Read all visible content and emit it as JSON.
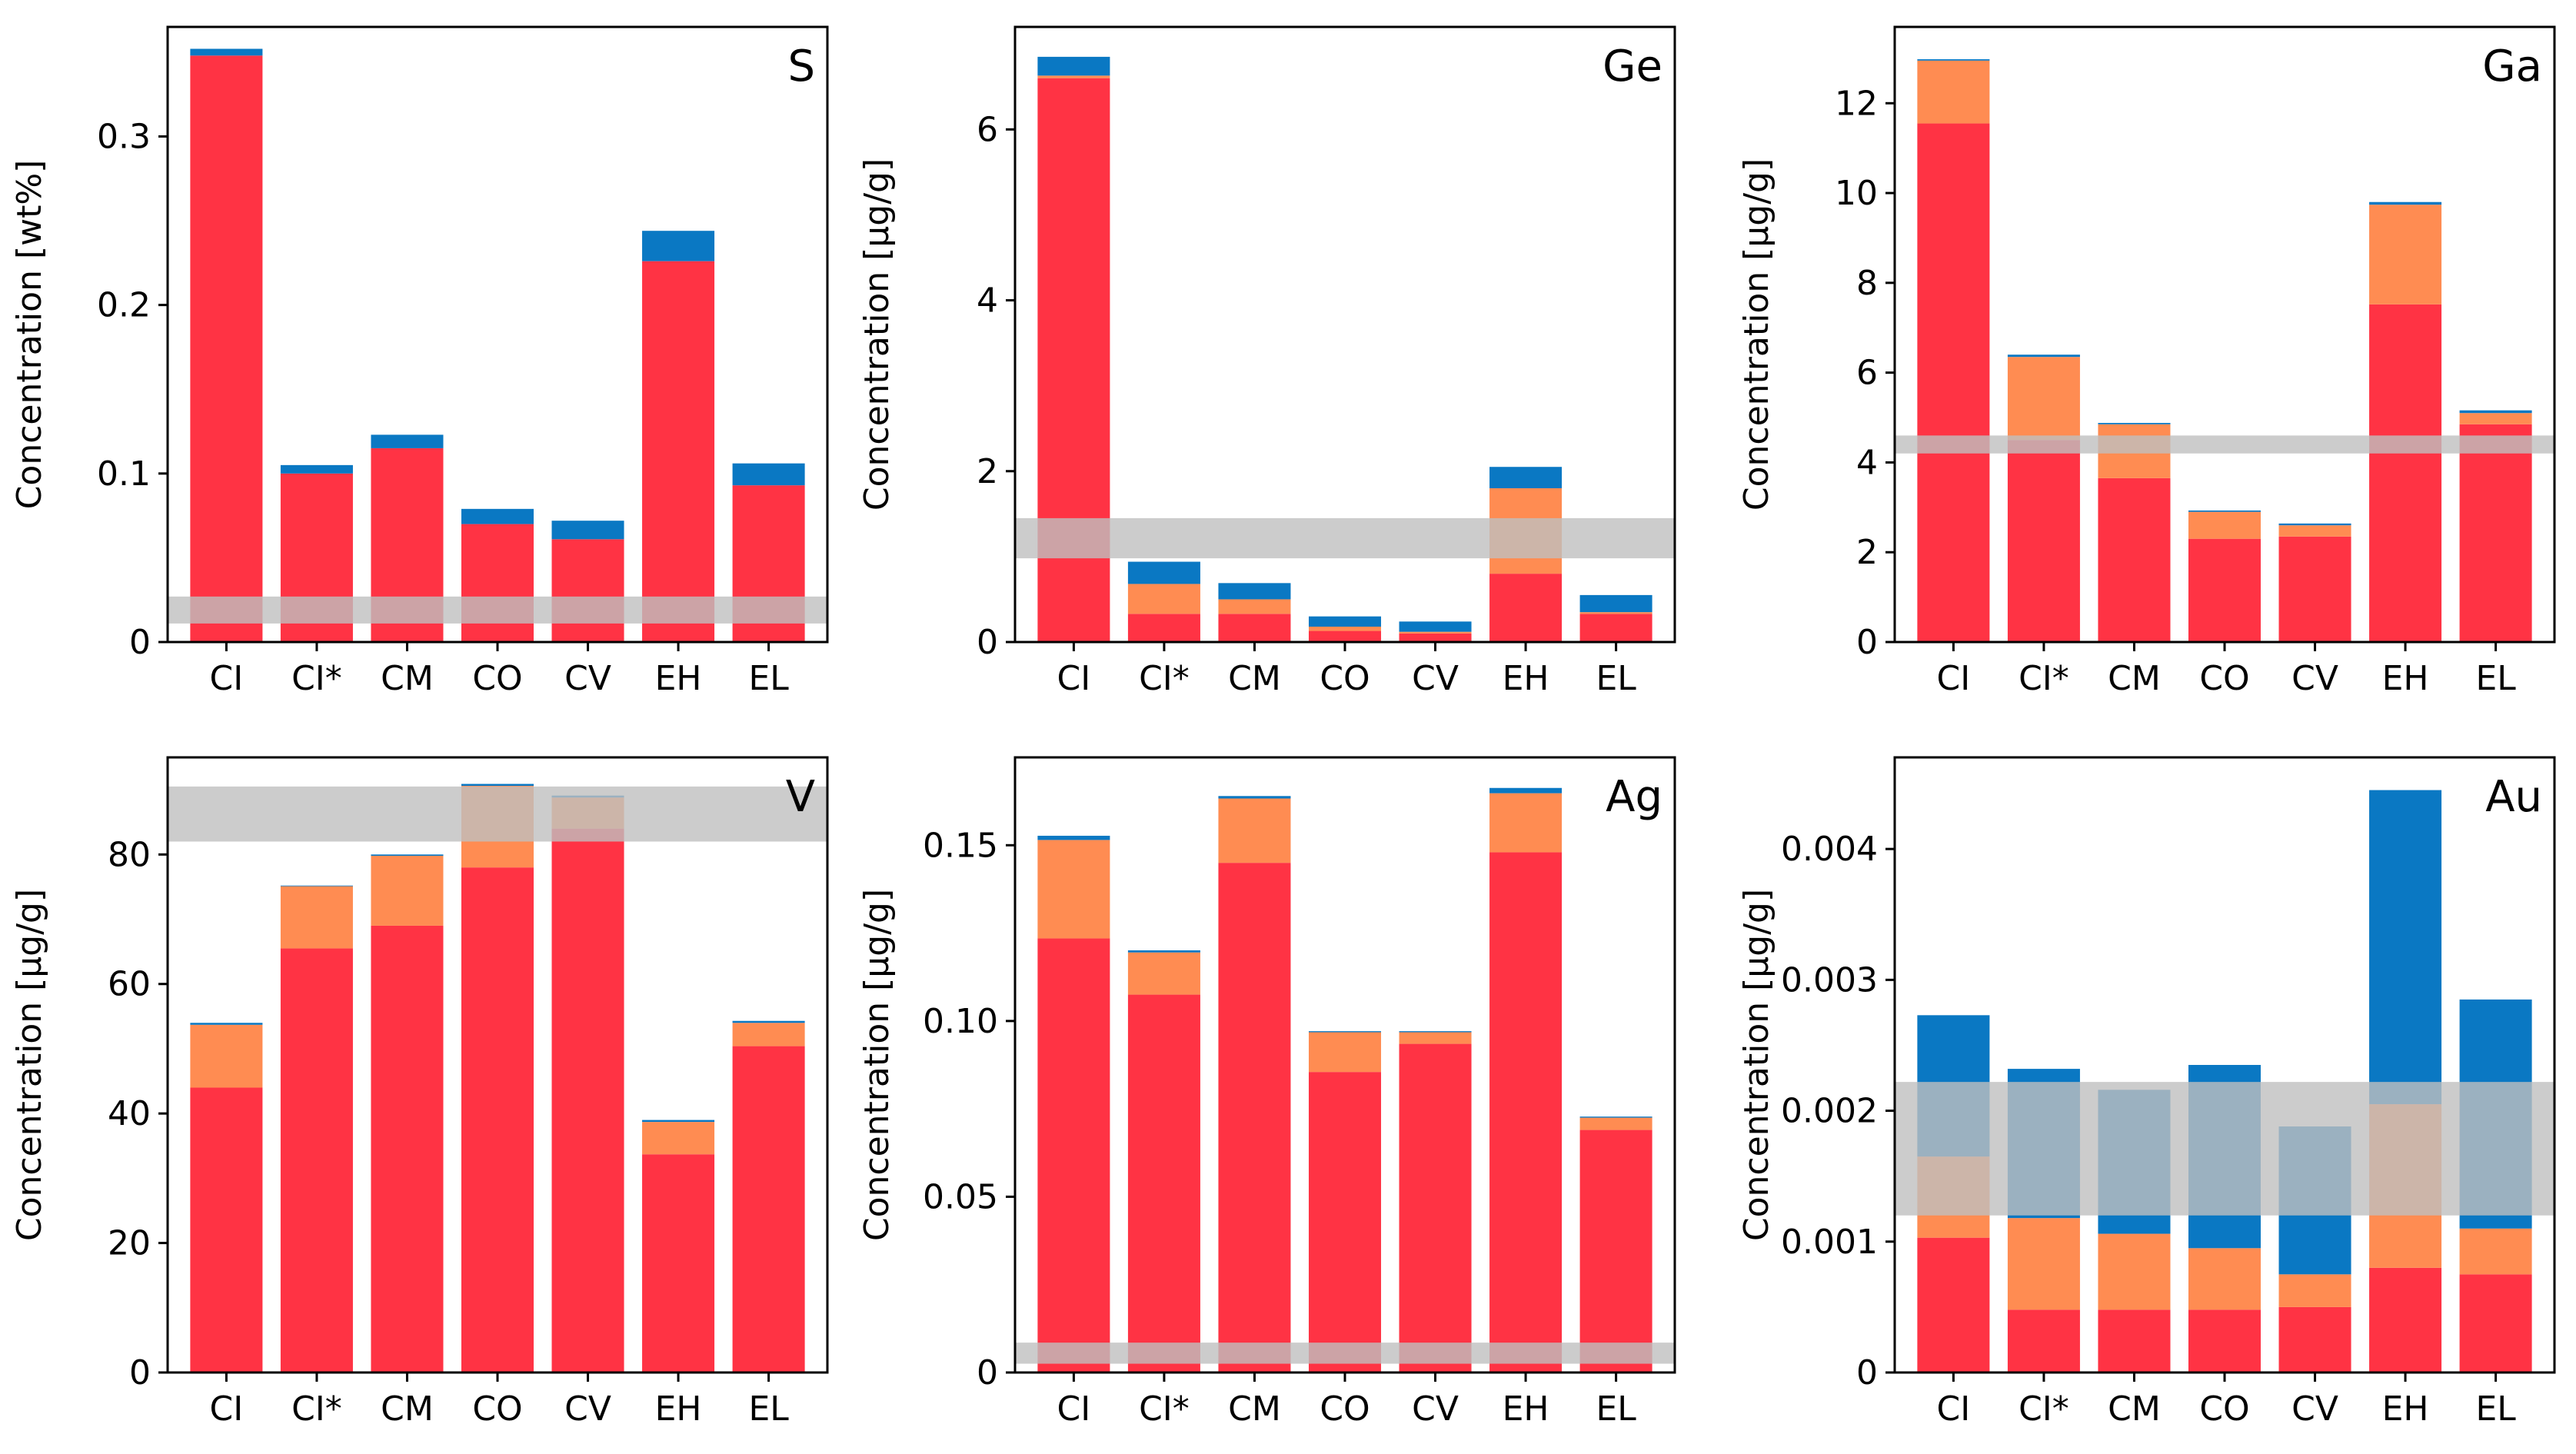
{
  "colors": {
    "bottom": "#ff3344",
    "middle": "#ff8c52",
    "top": "#0a78c3",
    "band": "#bfbfbf",
    "axis": "#000000"
  },
  "chart_data": [
    {
      "type": "bar",
      "title": "S",
      "ylabel": "Concentration [wt%]",
      "categories": [
        "CI",
        "CI*",
        "CM",
        "CO",
        "CV",
        "EH",
        "EL"
      ],
      "ylim": [
        0,
        0.365
      ],
      "yticks": [
        0,
        0.1,
        0.2,
        0.3
      ],
      "ytick_labels": [
        "0",
        "0.1",
        "0.2",
        "0.3"
      ],
      "series": [
        {
          "name": "bottom",
          "values": [
            0.348,
            0.1,
            0.115,
            0.07,
            0.061,
            0.226,
            0.093
          ]
        },
        {
          "name": "middle",
          "values": [
            0,
            0,
            0,
            0,
            0,
            0,
            0
          ]
        },
        {
          "name": "top",
          "values": [
            0.004,
            0.005,
            0.008,
            0.009,
            0.011,
            0.018,
            0.013
          ]
        }
      ],
      "band": [
        0.011,
        0.027
      ]
    },
    {
      "type": "bar",
      "title": "Ge",
      "ylabel": "Concentration [µg/g]",
      "categories": [
        "CI",
        "CI*",
        "CM",
        "CO",
        "CV",
        "EH",
        "EL"
      ],
      "ylim": [
        0,
        7.2
      ],
      "yticks": [
        0,
        2,
        4,
        6
      ],
      "ytick_labels": [
        "0",
        "2",
        "4",
        "6"
      ],
      "series": [
        {
          "name": "bottom",
          "values": [
            6.6,
            0.33,
            0.33,
            0.13,
            0.1,
            0.8,
            0.33
          ]
        },
        {
          "name": "middle",
          "values": [
            0.03,
            0.35,
            0.17,
            0.05,
            0.02,
            1.0,
            0.02
          ]
        },
        {
          "name": "top",
          "values": [
            0.22,
            0.26,
            0.19,
            0.12,
            0.12,
            0.25,
            0.2
          ]
        }
      ],
      "band": [
        0.98,
        1.45
      ]
    },
    {
      "type": "bar",
      "title": "Ga",
      "ylabel": "Concentration [µg/g]",
      "categories": [
        "CI",
        "CI*",
        "CM",
        "CO",
        "CV",
        "EH",
        "EL"
      ],
      "ylim": [
        0,
        13.7
      ],
      "yticks": [
        0,
        2,
        4,
        6,
        8,
        10,
        12
      ],
      "ytick_labels": [
        "0",
        "2",
        "4",
        "6",
        "8",
        "10",
        "12"
      ],
      "series": [
        {
          "name": "bottom",
          "values": [
            11.55,
            4.5,
            3.65,
            2.3,
            2.35,
            7.52,
            4.85
          ]
        },
        {
          "name": "middle",
          "values": [
            1.4,
            1.85,
            1.2,
            0.6,
            0.25,
            2.22,
            0.25
          ]
        },
        {
          "name": "top",
          "values": [
            0.03,
            0.05,
            0.03,
            0.03,
            0.04,
            0.06,
            0.06
          ]
        }
      ],
      "band": [
        4.2,
        4.6
      ]
    },
    {
      "type": "bar",
      "title": "V",
      "ylabel": "Concentration [µg/g]",
      "categories": [
        "CI",
        "CI*",
        "CM",
        "CO",
        "CV",
        "EH",
        "EL"
      ],
      "ylim": [
        0,
        95
      ],
      "yticks": [
        0,
        20,
        40,
        60,
        80
      ],
      "ytick_labels": [
        "0",
        "20",
        "40",
        "60",
        "80"
      ],
      "series": [
        {
          "name": "bottom",
          "values": [
            44,
            65.5,
            69,
            78,
            84,
            33.7,
            50.4
          ]
        },
        {
          "name": "middle",
          "values": [
            9.7,
            9.6,
            10.8,
            12.6,
            4.8,
            5.0,
            3.6
          ]
        },
        {
          "name": "top",
          "values": [
            0.3,
            0.1,
            0.2,
            0.3,
            0.3,
            0.3,
            0.3
          ]
        }
      ],
      "band": [
        82,
        90.5
      ]
    },
    {
      "type": "bar",
      "title": "Ag",
      "ylabel": "Concentration [µg/g]",
      "categories": [
        "CI",
        "CI*",
        "CM",
        "CO",
        "CV",
        "EH",
        "EL"
      ],
      "ylim": [
        0,
        0.175
      ],
      "yticks": [
        0,
        0.05,
        0.1,
        0.15
      ],
      "ytick_labels": [
        "0",
        "0.05",
        "0.10",
        "0.15"
      ],
      "series": [
        {
          "name": "bottom",
          "values": [
            0.1235,
            0.1075,
            0.145,
            0.0855,
            0.0935,
            0.148,
            0.069
          ]
        },
        {
          "name": "middle",
          "values": [
            0.028,
            0.012,
            0.0183,
            0.0113,
            0.0033,
            0.0168,
            0.0035
          ]
        },
        {
          "name": "top",
          "values": [
            0.0012,
            0.0006,
            0.0007,
            0.0003,
            0.0003,
            0.0015,
            0.0003
          ]
        }
      ],
      "band": [
        0.0025,
        0.0085
      ]
    },
    {
      "type": "bar",
      "title": "Au",
      "ylabel": "Concentration [µg/g]",
      "categories": [
        "CI",
        "CI*",
        "CM",
        "CO",
        "CV",
        "EH",
        "EL"
      ],
      "ylim": [
        0,
        0.0047
      ],
      "yticks": [
        0,
        0.001,
        0.002,
        0.003,
        0.004
      ],
      "ytick_labels": [
        "0",
        "0.001",
        "0.002",
        "0.003",
        "0.004"
      ],
      "series": [
        {
          "name": "bottom",
          "values": [
            0.00103,
            0.00048,
            0.00048,
            0.00048,
            0.0005,
            0.0008,
            0.00075
          ]
        },
        {
          "name": "middle",
          "values": [
            0.00062,
            0.0007,
            0.00058,
            0.00047,
            0.00025,
            0.00125,
            0.00035
          ]
        },
        {
          "name": "top",
          "values": [
            0.00108,
            0.00114,
            0.0011,
            0.0014,
            0.00113,
            0.0024,
            0.00175
          ]
        }
      ],
      "band": [
        0.0012,
        0.00222
      ]
    }
  ]
}
